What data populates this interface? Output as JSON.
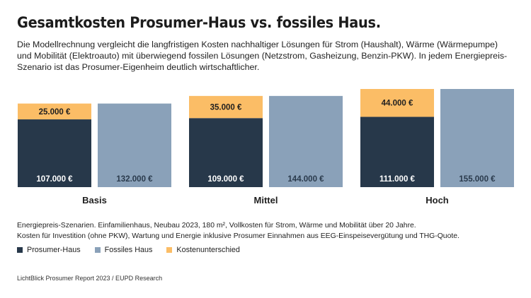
{
  "page": {
    "title": "Gesamtkosten Prosumer-Haus vs. fossiles Haus.",
    "subtitle": "Die Modellrechnung vergleicht die langfristigen Kosten nachhaltiger Lösungen für Strom (Haushalt), Wärme (Wärmepumpe) und Mobilität (Elektroauto) mit überwiegend fossilen Lösungen (Netzstrom, Gasheizung, Benzin-PKW). In jedem Energiepreis-Szenario ist das Prosumer-Eigenheim deutlich wirtschaftlicher.",
    "note_1": "Energiepreis-Szenarien. Einfamilienhaus, Neubau 2023, 180 m², Vollkosten für Strom, Wärme und Mobilität über 20 Jahre.",
    "note_2": "Kosten für Investition (ohne PKW), Wartung und Energie inklusive Prosumer Einnahmen aus EEG-Einspeisevergütung und THG-Quote.",
    "source": "LichtBlick Prosumer Report 2023 / EUPD Research"
  },
  "legend": [
    {
      "label": "Prosumer-Haus",
      "color": "#27384a"
    },
    {
      "label": "Fossiles Haus",
      "color": "#8aa1b9"
    },
    {
      "label": "Kostenunterschied",
      "color": "#fbbd66"
    }
  ],
  "chart_data": {
    "type": "bar",
    "stacked_pairs": true,
    "categories": [
      "Basis",
      "Mittel",
      "Hoch"
    ],
    "series": [
      {
        "name": "Prosumer-Haus",
        "values": [
          107000,
          109000,
          111000
        ],
        "labels": [
          "107.000 €",
          "109.000 €",
          "111.000 €"
        ],
        "color": "#27384a"
      },
      {
        "name": "Kostenunterschied",
        "values": [
          25000,
          35000,
          44000
        ],
        "labels": [
          "25.000 €",
          "35.000 €",
          "44.000 €"
        ],
        "color": "#fbbd66"
      },
      {
        "name": "Fossiles Haus",
        "values": [
          132000,
          144000,
          155000
        ],
        "labels": [
          "132.000 €",
          "144.000 €",
          "155.000 €"
        ],
        "color": "#8aa1b9"
      }
    ],
    "ylim": [
      0,
      155000
    ],
    "grid": false,
    "legend_position": "bottom-left"
  }
}
